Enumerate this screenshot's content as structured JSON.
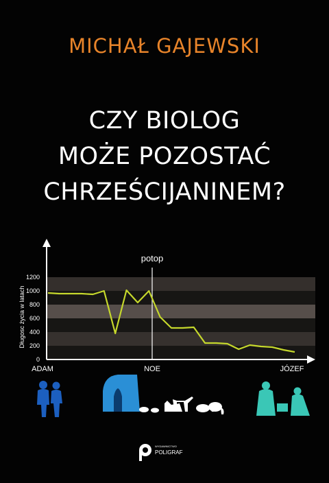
{
  "author": "MICHAŁ GAJEWSKI",
  "title_lines": [
    "CZY BIOLOG",
    "MOŻE POZOSTAĆ",
    "CHRZEŚCIJANINEM?"
  ],
  "chart_data": {
    "type": "line",
    "ylabel": "Długosc życia w latach",
    "yticks": [
      0,
      200,
      400,
      600,
      800,
      1000,
      1200
    ],
    "ylim": [
      0,
      1200
    ],
    "x_labels": [
      "ADAM",
      "NOE",
      "JÓZEF"
    ],
    "annotation": "potop",
    "x": [
      0,
      1,
      2,
      3,
      4,
      5,
      6,
      7,
      8,
      9,
      10,
      11,
      12,
      13,
      14,
      15,
      16,
      17,
      18,
      19,
      20,
      21,
      22
    ],
    "values": [
      970,
      960,
      960,
      960,
      950,
      1000,
      380,
      1010,
      830,
      1000,
      620,
      460,
      460,
      470,
      240,
      240,
      230,
      150,
      210,
      190,
      180,
      140,
      110
    ],
    "series_color": "#c6d82c"
  },
  "publisher": {
    "line1": "WYDAWNICTWO",
    "line2": "POLIGRAF"
  },
  "colors": {
    "author": "#e8842a",
    "title": "#ffffff",
    "adam_eve": "#1c5fbf",
    "ark": "#2a8fd6",
    "joseph": "#3ac7b6",
    "background": "#030303"
  }
}
